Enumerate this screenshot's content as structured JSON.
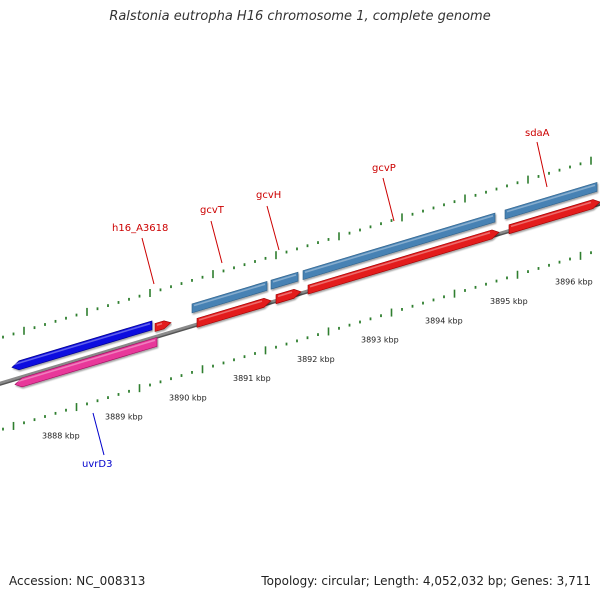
{
  "title": "Ralstonia eutropha H16 chromosome 1, complete genome",
  "footer": {
    "accession": "Accession: NC_008313",
    "summary": "Topology: circular; Length: 4,052,032 bp; Genes: 3,711"
  },
  "colors": {
    "backbone": "#8a8a8a",
    "tick": "#2f7f2f",
    "forward_cds": "#e31a1c",
    "forward_gene": "#4682b4",
    "reverse_cds": "#e8399a",
    "reverse_gene": "#1010e0",
    "forward_label": "#cc0000",
    "reverse_label": "#0000cc"
  },
  "scale_labels": [
    "3888 kbp",
    "3889 kbp",
    "3890 kbp",
    "3891 kbp",
    "3892 kbp",
    "3893 kbp",
    "3894 kbp",
    "3895 kbp",
    "3896 kbp"
  ],
  "genes": [
    {
      "name": "uvrD3",
      "strand": "reverse"
    },
    {
      "name": "h16_A3618",
      "strand": "forward"
    },
    {
      "name": "gcvT",
      "strand": "forward"
    },
    {
      "name": "gcvH",
      "strand": "forward"
    },
    {
      "name": "gcvP",
      "strand": "forward"
    },
    {
      "name": "sdaA",
      "strand": "forward"
    }
  ]
}
